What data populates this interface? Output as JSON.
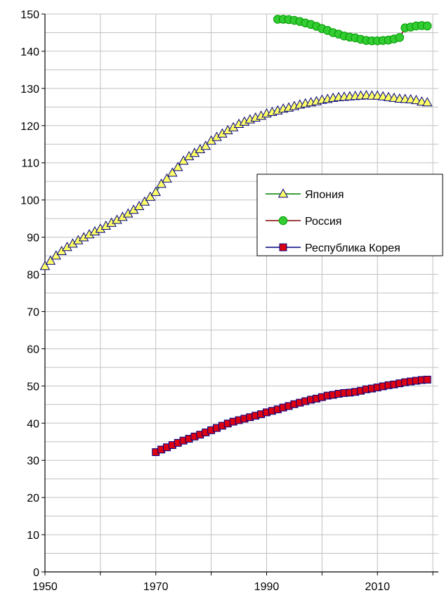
{
  "chart_data": {
    "type": "line",
    "title": "",
    "xlabel": "",
    "ylabel": "",
    "xlim": [
      1950,
      2021
    ],
    "ylim": [
      0,
      150
    ],
    "x_ticks": [
      1950,
      1970,
      1990,
      2010
    ],
    "x_minor_step": 10,
    "y_ticks": [
      0,
      10,
      20,
      30,
      40,
      50,
      60,
      70,
      80,
      90,
      100,
      110,
      120,
      130,
      140,
      150
    ],
    "y_minor_step": 5,
    "grid": true,
    "legend_position": "right-middle",
    "colors": {
      "grid": "#c0c0c0",
      "axis": "#000000",
      "japan_line": "#008000",
      "japan_marker_fill": "#ffff66",
      "japan_marker_stroke": "#000080",
      "russia_line": "#800000",
      "russia_marker_fill": "#33cc33",
      "russia_marker_stroke": "#009900",
      "korea_line": "#000080",
      "korea_marker_fill": "#dd0011",
      "korea_marker_stroke": "#000080"
    },
    "series": [
      {
        "name": "Япония",
        "marker": "triangle",
        "x": [
          1950,
          1951,
          1952,
          1953,
          1954,
          1955,
          1956,
          1957,
          1958,
          1959,
          1960,
          1961,
          1962,
          1963,
          1964,
          1965,
          1966,
          1967,
          1968,
          1969,
          1970,
          1971,
          1972,
          1973,
          1974,
          1975,
          1976,
          1977,
          1978,
          1979,
          1980,
          1981,
          1982,
          1983,
          1984,
          1985,
          1986,
          1987,
          1988,
          1989,
          1990,
          1991,
          1992,
          1993,
          1994,
          1995,
          1996,
          1997,
          1998,
          1999,
          2000,
          2001,
          2002,
          2003,
          2004,
          2005,
          2006,
          2007,
          2008,
          2009,
          2010,
          2011,
          2012,
          2013,
          2014,
          2015,
          2016,
          2017,
          2018,
          2019
        ],
        "values": [
          82.2,
          83.6,
          85.0,
          86.2,
          87.3,
          88.2,
          89.1,
          89.9,
          90.7,
          91.5,
          92.2,
          93.0,
          93.8,
          94.6,
          95.4,
          96.3,
          97.3,
          98.3,
          99.5,
          100.8,
          102.1,
          104.3,
          105.7,
          107.3,
          108.8,
          110.5,
          111.7,
          112.6,
          113.6,
          114.5,
          115.9,
          116.9,
          117.8,
          118.7,
          119.5,
          120.4,
          121.0,
          121.6,
          122.1,
          122.6,
          123.2,
          123.6,
          124.0,
          124.5,
          124.8,
          125.2,
          125.6,
          125.9,
          126.2,
          126.5,
          126.9,
          127.1,
          127.4,
          127.6,
          127.7,
          127.8,
          127.9,
          128.0,
          128.1,
          128.0,
          128.0,
          127.8,
          127.6,
          127.4,
          127.2,
          127.1,
          127.0,
          126.8,
          126.4,
          126.2
        ]
      },
      {
        "name": "Россия",
        "marker": "circle",
        "x": [
          1992,
          1993,
          1994,
          1995,
          1996,
          1997,
          1998,
          1999,
          2000,
          2001,
          2002,
          2003,
          2004,
          2005,
          2006,
          2007,
          2008,
          2009,
          2010,
          2011,
          2012,
          2013,
          2014,
          2015,
          2016,
          2017,
          2018,
          2019
        ],
        "values": [
          148.6,
          148.6,
          148.5,
          148.3,
          148.0,
          147.6,
          147.2,
          146.7,
          146.1,
          145.6,
          145.0,
          144.6,
          144.1,
          143.8,
          143.6,
          143.2,
          142.9,
          142.8,
          142.8,
          142.9,
          143.0,
          143.3,
          143.7,
          146.3,
          146.5,
          146.8,
          146.9,
          146.8
        ]
      },
      {
        "name": "Республика Корея",
        "marker": "square",
        "x": [
          1970,
          1971,
          1972,
          1973,
          1974,
          1975,
          1976,
          1977,
          1978,
          1979,
          1980,
          1981,
          1982,
          1983,
          1984,
          1985,
          1986,
          1987,
          1988,
          1989,
          1990,
          1991,
          1992,
          1993,
          1994,
          1995,
          1996,
          1997,
          1998,
          1999,
          2000,
          2001,
          2002,
          2003,
          2004,
          2005,
          2006,
          2007,
          2008,
          2009,
          2010,
          2011,
          2012,
          2013,
          2014,
          2015,
          2016,
          2017,
          2018,
          2019
        ],
        "values": [
          32.2,
          32.9,
          33.5,
          34.1,
          34.7,
          35.3,
          35.8,
          36.4,
          36.9,
          37.5,
          38.1,
          38.7,
          39.3,
          39.9,
          40.4,
          40.8,
          41.2,
          41.6,
          42.0,
          42.4,
          42.9,
          43.3,
          43.7,
          44.2,
          44.6,
          45.1,
          45.5,
          45.9,
          46.3,
          46.6,
          47.0,
          47.4,
          47.6,
          47.9,
          48.1,
          48.2,
          48.4,
          48.7,
          49.1,
          49.3,
          49.6,
          49.9,
          50.2,
          50.4,
          50.7,
          51.0,
          51.2,
          51.4,
          51.6,
          51.7
        ]
      }
    ]
  }
}
